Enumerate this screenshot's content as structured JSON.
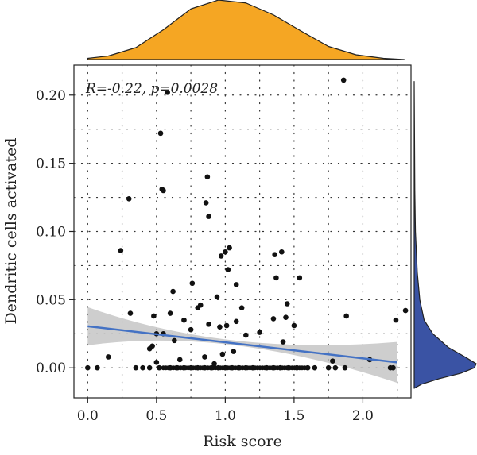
{
  "chart_data": {
    "type": "scatter",
    "xlabel": "Risk score",
    "ylabel": "Dendritic cells activated",
    "annotation": "R=-0.22, p=0.0028",
    "xlim": [
      -0.1,
      2.35
    ],
    "ylim": [
      -0.022,
      0.222
    ],
    "x_ticks": [
      0.0,
      0.5,
      1.0,
      1.5,
      2.0
    ],
    "x_tick_labels": [
      "0.0",
      "0.5",
      "1.0",
      "1.5",
      "2.0"
    ],
    "y_ticks": [
      0.0,
      0.05,
      0.1,
      0.15,
      0.2
    ],
    "y_tick_labels": [
      "0.00",
      "0.05",
      "0.10",
      "0.15",
      "0.20"
    ],
    "grid": "dotted",
    "regression": {
      "x": [
        0.0,
        2.25
      ],
      "y": [
        0.0305,
        0.004
      ],
      "ci_upper": [
        0.0445,
        0.019
      ],
      "ci_center": [
        1.0,
        0.0195
      ],
      "ci_lower": [
        0.0165,
        -0.011
      ]
    },
    "colors": {
      "points": "#111111",
      "regression_line": "#4472c4",
      "ci_band": "#bdbdbd",
      "top_density": "#f5a623",
      "right_density": "#3a53a4"
    },
    "points": [
      {
        "x": 0.0,
        "y": 0.0
      },
      {
        "x": 0.07,
        "y": 0.0
      },
      {
        "x": 0.15,
        "y": 0.008
      },
      {
        "x": 0.24,
        "y": 0.086
      },
      {
        "x": 0.3,
        "y": 0.124
      },
      {
        "x": 0.31,
        "y": 0.04
      },
      {
        "x": 0.35,
        "y": 0.0
      },
      {
        "x": 0.4,
        "y": 0.0
      },
      {
        "x": 0.45,
        "y": 0.0
      },
      {
        "x": 0.45,
        "y": 0.014
      },
      {
        "x": 0.47,
        "y": 0.016
      },
      {
        "x": 0.48,
        "y": 0.038
      },
      {
        "x": 0.5,
        "y": 0.004
      },
      {
        "x": 0.5,
        "y": 0.025
      },
      {
        "x": 0.52,
        "y": 0.0
      },
      {
        "x": 0.53,
        "y": 0.172
      },
      {
        "x": 0.54,
        "y": 0.131
      },
      {
        "x": 0.55,
        "y": 0.13
      },
      {
        "x": 0.55,
        "y": 0.025
      },
      {
        "x": 0.58,
        "y": 0.202
      },
      {
        "x": 0.6,
        "y": 0.0
      },
      {
        "x": 0.6,
        "y": 0.04
      },
      {
        "x": 0.62,
        "y": 0.056
      },
      {
        "x": 0.63,
        "y": 0.02
      },
      {
        "x": 0.65,
        "y": 0.0
      },
      {
        "x": 0.67,
        "y": 0.006
      },
      {
        "x": 0.7,
        "y": 0.0
      },
      {
        "x": 0.7,
        "y": 0.035
      },
      {
        "x": 0.75,
        "y": 0.0
      },
      {
        "x": 0.75,
        "y": 0.028
      },
      {
        "x": 0.76,
        "y": 0.062
      },
      {
        "x": 0.8,
        "y": 0.044
      },
      {
        "x": 0.8,
        "y": 0.0
      },
      {
        "x": 0.82,
        "y": 0.046
      },
      {
        "x": 0.85,
        "y": 0.008
      },
      {
        "x": 0.85,
        "y": 0.0
      },
      {
        "x": 0.86,
        "y": 0.121
      },
      {
        "x": 0.87,
        "y": 0.14
      },
      {
        "x": 0.88,
        "y": 0.111
      },
      {
        "x": 0.88,
        "y": 0.032
      },
      {
        "x": 0.9,
        "y": 0.0
      },
      {
        "x": 0.92,
        "y": 0.003
      },
      {
        "x": 0.94,
        "y": 0.052
      },
      {
        "x": 0.95,
        "y": 0.0
      },
      {
        "x": 0.96,
        "y": 0.03
      },
      {
        "x": 0.97,
        "y": 0.082
      },
      {
        "x": 0.98,
        "y": 0.01
      },
      {
        "x": 1.0,
        "y": 0.085
      },
      {
        "x": 1.0,
        "y": 0.0
      },
      {
        "x": 1.01,
        "y": 0.031
      },
      {
        "x": 1.02,
        "y": 0.072
      },
      {
        "x": 1.03,
        "y": 0.088
      },
      {
        "x": 1.05,
        "y": 0.0
      },
      {
        "x": 1.06,
        "y": 0.012
      },
      {
        "x": 1.08,
        "y": 0.061
      },
      {
        "x": 1.08,
        "y": 0.034
      },
      {
        "x": 1.1,
        "y": 0.0
      },
      {
        "x": 1.12,
        "y": 0.044
      },
      {
        "x": 1.15,
        "y": 0.0
      },
      {
        "x": 1.15,
        "y": 0.024
      },
      {
        "x": 1.2,
        "y": 0.0
      },
      {
        "x": 1.25,
        "y": 0.026
      },
      {
        "x": 1.3,
        "y": 0.0
      },
      {
        "x": 1.35,
        "y": 0.0
      },
      {
        "x": 1.35,
        "y": 0.036
      },
      {
        "x": 1.36,
        "y": 0.083
      },
      {
        "x": 1.37,
        "y": 0.066
      },
      {
        "x": 1.4,
        "y": 0.0
      },
      {
        "x": 1.41,
        "y": 0.085
      },
      {
        "x": 1.42,
        "y": 0.019
      },
      {
        "x": 1.44,
        "y": 0.037
      },
      {
        "x": 1.45,
        "y": 0.047
      },
      {
        "x": 1.46,
        "y": 0.0
      },
      {
        "x": 1.5,
        "y": 0.031
      },
      {
        "x": 1.52,
        "y": 0.0
      },
      {
        "x": 1.54,
        "y": 0.066
      },
      {
        "x": 1.6,
        "y": 0.0
      },
      {
        "x": 1.65,
        "y": 0.0
      },
      {
        "x": 1.75,
        "y": 0.0
      },
      {
        "x": 1.78,
        "y": 0.005
      },
      {
        "x": 1.8,
        "y": 0.0
      },
      {
        "x": 1.86,
        "y": 0.211
      },
      {
        "x": 1.87,
        "y": 0.0
      },
      {
        "x": 1.88,
        "y": 0.038
      },
      {
        "x": 2.05,
        "y": 0.006
      },
      {
        "x": 2.2,
        "y": 0.0
      },
      {
        "x": 2.22,
        "y": 0.0
      },
      {
        "x": 2.24,
        "y": 0.035
      },
      {
        "x": 2.31,
        "y": 0.042
      }
    ],
    "dense_zero_band": {
      "x_from": 0.55,
      "x_to": 1.6,
      "y": 0.0
    }
  }
}
